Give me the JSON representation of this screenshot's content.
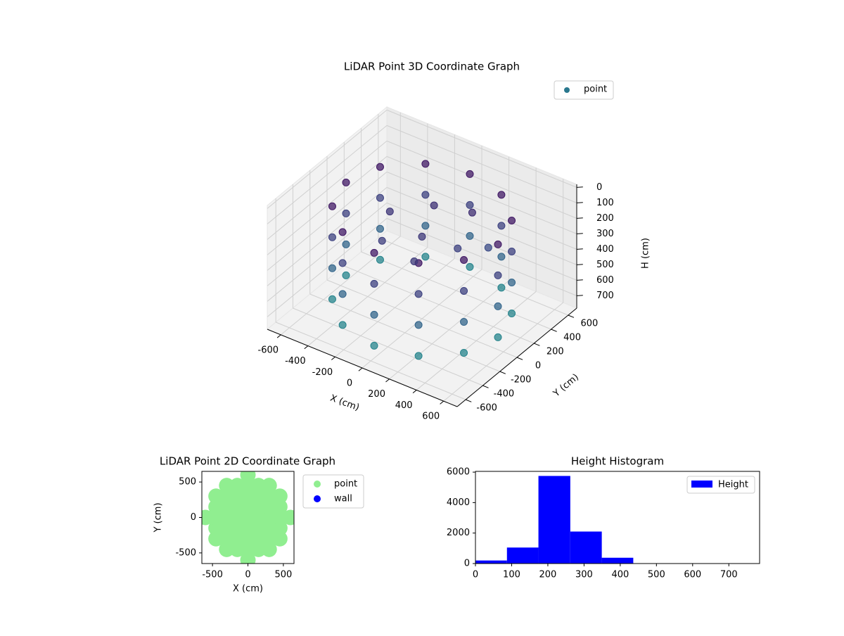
{
  "chart_data": [
    {
      "type": "scatter3d",
      "title": "LiDAR Point 3D Coordinate Graph",
      "xlabel": "X (cm)",
      "ylabel": "Y (cm)",
      "zlabel": "H (cm)",
      "xlim": [
        -700,
        700
      ],
      "ylim": [
        -700,
        700
      ],
      "zlim": [
        -20,
        780
      ],
      "z_inverted": true,
      "xticks": [
        -600,
        -400,
        -200,
        0,
        200,
        400,
        600
      ],
      "yticks": [
        -600,
        -400,
        -200,
        0,
        200,
        400,
        600
      ],
      "zticks": [
        0,
        100,
        200,
        300,
        400,
        500,
        600,
        700
      ],
      "colormap": [
        "#440154",
        "#3b528b",
        "#21918c"
      ],
      "series": [
        {
          "name": "point",
          "color": "#2a788e",
          "x": [
            560,
            485,
            280,
            0,
            -280,
            -485,
            -560,
            -485,
            -280,
            0,
            280,
            485,
            560,
            485,
            280,
            0,
            -280,
            -485,
            -560,
            -485,
            -280,
            0,
            280,
            485,
            560,
            485,
            280,
            0,
            -280,
            -485,
            -560,
            -485,
            -280,
            0,
            280,
            485,
            560,
            485,
            280,
            0,
            -280,
            -485,
            -560,
            -485,
            -280,
            0,
            280,
            485,
            0,
            200,
            -200,
            100,
            -300,
            300,
            150,
            -100
          ],
          "y": [
            0,
            280,
            485,
            560,
            485,
            280,
            0,
            -280,
            -485,
            -560,
            -485,
            -280,
            0,
            280,
            485,
            560,
            485,
            280,
            0,
            -280,
            -485,
            -560,
            -485,
            -280,
            0,
            280,
            485,
            560,
            485,
            280,
            0,
            -280,
            -485,
            -560,
            -485,
            -280,
            0,
            280,
            485,
            560,
            485,
            280,
            0,
            -280,
            -485,
            -560,
            -485,
            -280,
            0,
            100,
            -150,
            -250,
            100,
            300,
            350,
            300
          ],
          "z": [
            100,
            100,
            100,
            100,
            100,
            100,
            100,
            100,
            100,
            100,
            100,
            100,
            300,
            300,
            300,
            300,
            300,
            300,
            300,
            300,
            300,
            300,
            300,
            300,
            500,
            500,
            500,
            500,
            500,
            500,
            500,
            500,
            500,
            500,
            500,
            500,
            700,
            700,
            700,
            700,
            700,
            700,
            700,
            700,
            700,
            700,
            700,
            700,
            250,
            300,
            280,
            260,
            240,
            350,
            200,
            220
          ]
        }
      ]
    },
    {
      "type": "scatter",
      "title": "LiDAR Point 2D Coordinate Graph",
      "xlabel": "X (cm)",
      "ylabel": "Y (cm)",
      "xlim": [
        -650,
        650
      ],
      "ylim": [
        -650,
        650
      ],
      "xticks": [
        -500,
        0,
        500
      ],
      "yticks": [
        -500,
        0,
        500
      ],
      "series": [
        {
          "name": "point",
          "color": "#90ee90",
          "x": [
            -600,
            600,
            -450,
            -450,
            -450,
            -450,
            -450,
            450,
            450,
            450,
            450,
            450,
            -300,
            -300,
            -300,
            -300,
            -300,
            -300,
            -300,
            300,
            300,
            300,
            300,
            300,
            300,
            300,
            -150,
            -150,
            -150,
            -150,
            -150,
            -150,
            -150,
            150,
            150,
            150,
            150,
            150,
            150,
            150,
            0,
            0,
            0,
            0,
            0,
            0,
            0,
            0,
            0
          ],
          "y": [
            0,
            0,
            -300,
            -150,
            0,
            150,
            300,
            -300,
            -150,
            0,
            150,
            300,
            -450,
            -300,
            -150,
            0,
            150,
            300,
            450,
            -450,
            -300,
            -150,
            0,
            150,
            300,
            450,
            -450,
            -300,
            -150,
            0,
            150,
            300,
            450,
            -450,
            -300,
            -150,
            0,
            150,
            300,
            450,
            -600,
            -450,
            -300,
            -150,
            0,
            150,
            300,
            450,
            600
          ]
        },
        {
          "name": "wall",
          "color": "#0000ff",
          "x": [],
          "y": []
        }
      ]
    },
    {
      "type": "histogram",
      "title": "Height Histogram",
      "xlim": [
        0,
        785
      ],
      "ylim": [
        0,
        6050
      ],
      "xticks": [
        0,
        100,
        200,
        300,
        400,
        500,
        600,
        700
      ],
      "yticks": [
        0,
        2000,
        4000,
        6000
      ],
      "series": [
        {
          "name": "Height",
          "color": "#0000ff",
          "bins": [
            0,
            87,
            174,
            262,
            349,
            436,
            523,
            610,
            698,
            785
          ],
          "values": [
            200,
            1050,
            5750,
            2100,
            380,
            5,
            3,
            2,
            1
          ]
        }
      ]
    }
  ]
}
